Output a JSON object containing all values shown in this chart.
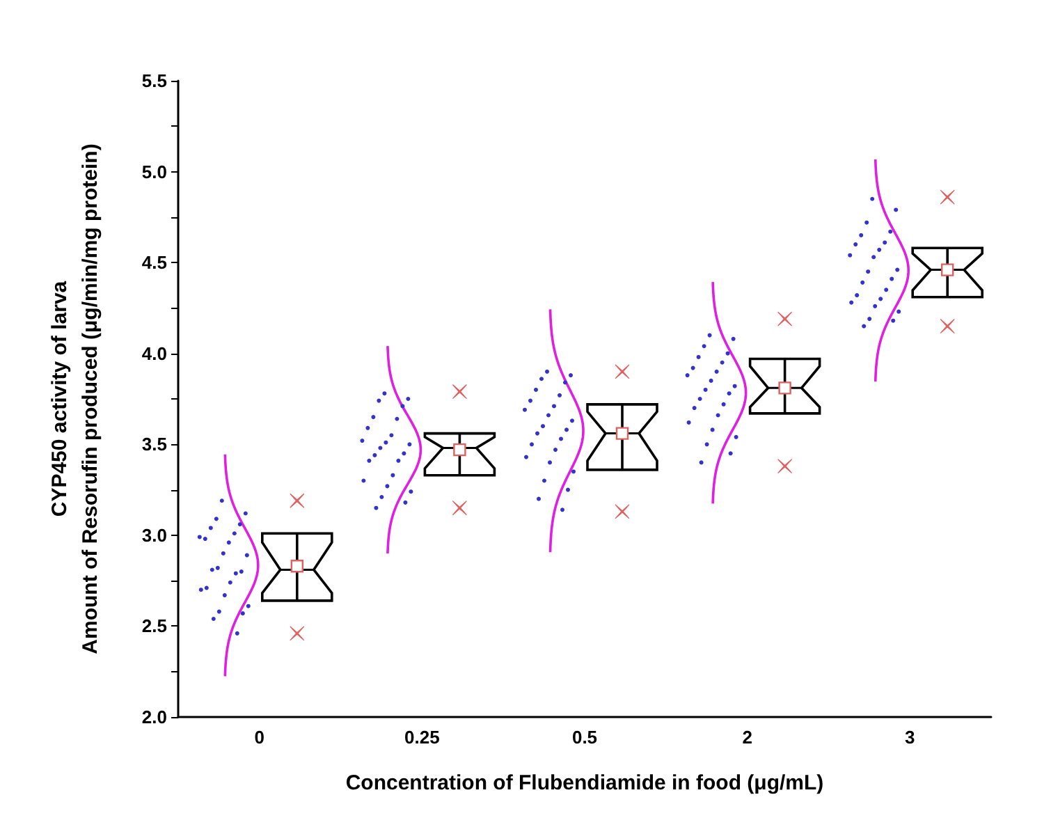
{
  "chart_data": {
    "type": "box",
    "xlabel": "Concentration of Flubendiamide in food (μg/mL)",
    "ylabel": "CYP450 activity of larva\nAmount of Resorufin produced (μg/min/mg protein)",
    "categories": [
      "0",
      "0.25",
      "0.5",
      "2",
      "3"
    ],
    "ylim": [
      2,
      5.5
    ],
    "yticks": [
      {
        "value": 2,
        "label": "2.0"
      },
      {
        "value": 2.25,
        "label": null
      },
      2.5,
      {
        "value": 2.75,
        "label": null
      },
      {
        "value": 3,
        "label": "3.0"
      },
      {
        "value": 3.25,
        "label": null
      },
      3.5,
      {
        "value": 3.75,
        "label": null
      },
      {
        "value": 4,
        "label": "4.0"
      },
      {
        "value": 4.25,
        "label": null
      },
      4.5,
      {
        "value": 4.75,
        "label": null
      },
      {
        "value": 5,
        "label": "5.0"
      },
      {
        "value": 5.25,
        "label": null
      },
      5.5
    ],
    "grid": false,
    "series": [
      {
        "type": "box",
        "color": "#000000",
        "boxes": [
          {
            "low": 2.64,
            "q1": 2.64,
            "median": 2.81,
            "q3": 3.01,
            "high": 3.01,
            "mean": 2.83,
            "outliers": [
              2.46,
              3.19
            ]
          },
          {
            "low": 3.33,
            "q1": 3.33,
            "median": 3.48,
            "q3": 3.56,
            "high": 3.56,
            "mean": 3.47,
            "outliers": [
              3.15,
              3.79
            ]
          },
          {
            "low": 3.36,
            "q1": 3.36,
            "median": 3.56,
            "q3": 3.72,
            "high": 3.72,
            "mean": 3.56,
            "outliers": [
              3.13,
              3.9
            ]
          },
          {
            "low": 3.67,
            "q1": 3.67,
            "median": 3.81,
            "q3": 3.97,
            "high": 3.97,
            "mean": 3.81,
            "outliers": [
              3.38,
              4.19
            ]
          },
          {
            "low": 4.31,
            "q1": 4.31,
            "median": 4.46,
            "q3": 4.58,
            "high": 4.58,
            "mean": 4.46,
            "outliers": [
              4.15,
              4.86
            ]
          }
        ]
      },
      {
        "type": "scatter",
        "color": "#3333cc",
        "marker": "circle",
        "x": [
          "0",
          "0",
          "0",
          "0",
          "0",
          "0",
          "0",
          "0",
          "0",
          "0",
          "0",
          "0",
          "0",
          "0",
          "0",
          "0",
          "0",
          "0",
          "0",
          "0",
          "0",
          "0",
          "0",
          "0",
          "0.25",
          "0.25",
          "0.25",
          "0.25",
          "0.25",
          "0.25",
          "0.25",
          "0.25",
          "0.25",
          "0.25",
          "0.25",
          "0.25",
          "0.25",
          "0.25",
          "0.25",
          "0.25",
          "0.25",
          "0.25",
          "0.25",
          "0.25",
          "0.25",
          "0.25",
          "0.25",
          "0.5",
          "0.5",
          "0.5",
          "0.5",
          "0.5",
          "0.5",
          "0.5",
          "0.5",
          "0.5",
          "0.5",
          "0.5",
          "0.5",
          "0.5",
          "0.5",
          "0.5",
          "0.5",
          "0.5",
          "0.5",
          "0.5",
          "0.5",
          "0.5",
          "0.5",
          "0.5",
          "0.5",
          "2",
          "2",
          "2",
          "2",
          "2",
          "2",
          "2",
          "2",
          "2",
          "2",
          "2",
          "2",
          "2",
          "2",
          "2",
          "2",
          "2",
          "2",
          "2",
          "2",
          "2",
          "2",
          "2",
          "3",
          "3",
          "3",
          "3",
          "3",
          "3",
          "3",
          "3",
          "3",
          "3",
          "3",
          "3",
          "3",
          "3",
          "3",
          "3",
          "3",
          "3",
          "3",
          "3",
          "3",
          "3",
          "3"
        ],
        "values": [
          3.19,
          3.12,
          3.09,
          3.06,
          3.04,
          3.01,
          2.98,
          2.96,
          2.99,
          2.9,
          2.89,
          2.82,
          2.8,
          2.81,
          2.79,
          2.71,
          2.74,
          2.7,
          2.67,
          2.61,
          2.58,
          2.57,
          2.54,
          2.46,
          3.78,
          3.75,
          3.74,
          3.71,
          3.65,
          3.64,
          3.59,
          3.55,
          3.52,
          3.51,
          3.5,
          3.48,
          3.45,
          3.44,
          3.41,
          3.41,
          3.33,
          3.3,
          3.27,
          3.24,
          3.21,
          3.18,
          3.15,
          3.9,
          3.88,
          3.86,
          3.84,
          3.8,
          3.77,
          3.74,
          3.71,
          3.69,
          3.66,
          3.63,
          3.6,
          3.58,
          3.56,
          3.53,
          3.5,
          3.47,
          3.43,
          3.4,
          3.35,
          3.3,
          3.25,
          3.2,
          3.14,
          4.1,
          4.08,
          4.04,
          4.0,
          3.98,
          3.95,
          3.92,
          3.9,
          3.88,
          3.85,
          3.82,
          3.8,
          3.78,
          3.75,
          3.72,
          3.7,
          3.66,
          3.62,
          3.58,
          3.54,
          3.5,
          3.45,
          3.4,
          4.85,
          4.79,
          4.72,
          4.67,
          4.65,
          4.61,
          4.6,
          4.57,
          4.54,
          4.53,
          4.46,
          4.45,
          4.41,
          4.39,
          4.35,
          4.32,
          4.3,
          4.28,
          4.26,
          4.23,
          4.19,
          4.18,
          4.15
        ]
      }
    ]
  }
}
